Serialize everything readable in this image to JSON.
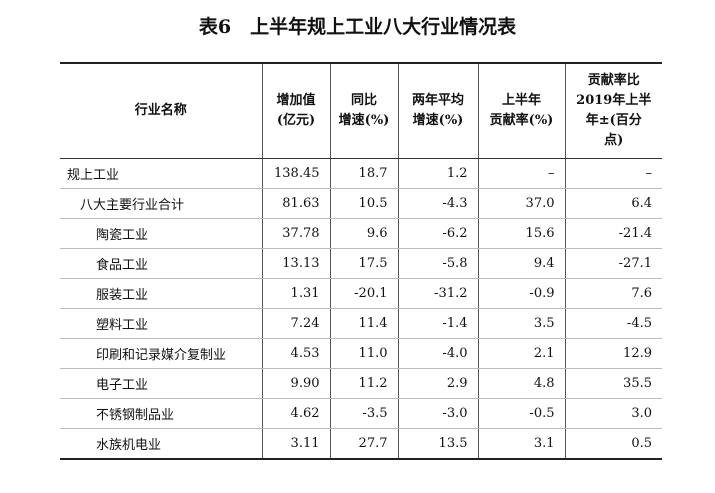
{
  "title": "表6　上半年规上工业八大行业情况表",
  "table": {
    "header": [
      [
        "行业名称"
      ],
      [
        "增加值",
        "(亿元)"
      ],
      [
        "同比",
        "增速(%)"
      ],
      [
        "两年平均",
        "增速(%)"
      ],
      [
        "上半年",
        "贡献率(%)"
      ],
      [
        "贡献率比",
        "2019年上半",
        "年±(百分",
        "点)"
      ]
    ],
    "rows": [
      [
        "规上工业",
        "138.45",
        "18.7",
        "1.2",
        "–",
        "–"
      ],
      [
        "八大主要行业合计",
        "81.63",
        "10.5",
        "-4.3",
        "37.0",
        "6.4"
      ],
      [
        "陶瓷工业",
        "37.78",
        "9.6",
        "-6.2",
        "15.6",
        "-21.4"
      ],
      [
        "食品工业",
        "13.13",
        "17.5",
        "-5.8",
        "9.4",
        "-27.1"
      ],
      [
        "服装工业",
        "1.31",
        "-20.1",
        "-31.2",
        "-0.9",
        "7.6"
      ],
      [
        "塑料工业",
        "7.24",
        "11.4",
        "-1.4",
        "3.5",
        "-4.5"
      ],
      [
        "印刷和记录媒介复制业",
        "4.53",
        "11.0",
        "-4.0",
        "2.1",
        "12.9"
      ],
      [
        "电子工业",
        "9.90",
        "11.2",
        "2.9",
        "4.8",
        "35.5"
      ],
      [
        "不锈钢制品业",
        "4.62",
        "-3.5",
        "-3.0",
        "-0.5",
        "3.0"
      ],
      [
        "水族机电业",
        "3.11",
        "27.7",
        "13.5",
        "3.1",
        "0.5"
      ]
    ]
  }
}
